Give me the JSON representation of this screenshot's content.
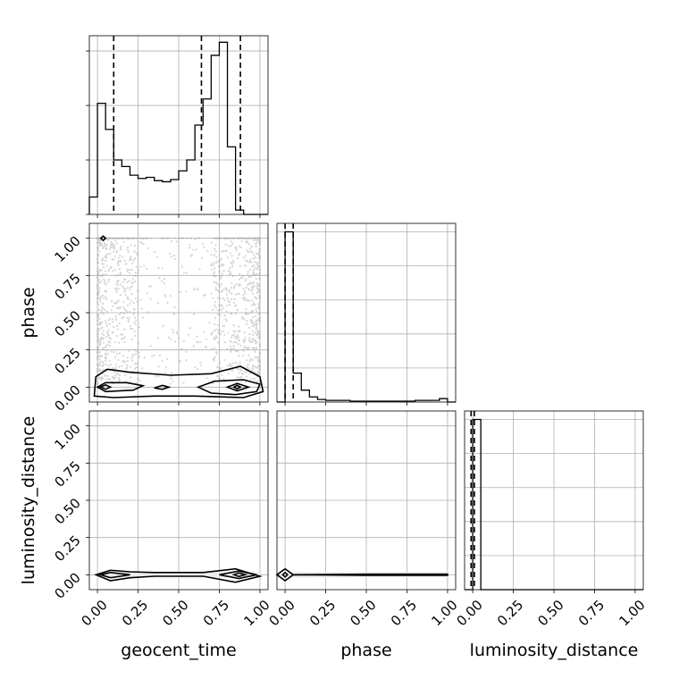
{
  "chart_data": {
    "type": "corner",
    "parameters": [
      "geocent_time",
      "phase",
      "luminosity_distance"
    ],
    "ticks": [
      "0.00",
      "0.25",
      "0.50",
      "0.75",
      "1.00"
    ],
    "tick_values": [
      0,
      0.25,
      0.5,
      0.75,
      1.0
    ],
    "xlim": [
      -0.05,
      1.05
    ],
    "grid": true,
    "histograms": {
      "geocent_time": {
        "bin_edges": [
          -0.05,
          0.0,
          0.05,
          0.1,
          0.15,
          0.2,
          0.25,
          0.3,
          0.35,
          0.4,
          0.45,
          0.5,
          0.55,
          0.6,
          0.65,
          0.7,
          0.75,
          0.8,
          0.85,
          0.9,
          0.95,
          1.0,
          1.05
        ],
        "heights": [
          0.08,
          0.51,
          0.39,
          0.25,
          0.22,
          0.18,
          0.165,
          0.17,
          0.155,
          0.15,
          0.16,
          0.2,
          0.25,
          0.41,
          0.53,
          0.73,
          0.79,
          0.31,
          0.02,
          0.0,
          0.0,
          0.0
        ],
        "ymax": 0.82,
        "quantiles": [
          0.1,
          0.64,
          0.88
        ]
      },
      "phase": {
        "bin_edges": [
          -0.05,
          0.0,
          0.05,
          0.1,
          0.15,
          0.2,
          0.25,
          0.3,
          0.35,
          0.4,
          0.45,
          0.5,
          0.55,
          0.6,
          0.65,
          0.7,
          0.75,
          0.8,
          0.85,
          0.9,
          0.95,
          1.0,
          1.05
        ],
        "heights": [
          0.0,
          1.0,
          0.17,
          0.07,
          0.03,
          0.015,
          0.01,
          0.01,
          0.01,
          0.005,
          0.005,
          0.005,
          0.005,
          0.005,
          0.005,
          0.005,
          0.005,
          0.01,
          0.01,
          0.01,
          0.02,
          0.0
        ],
        "ymax": 1.05,
        "quantiles": [
          0.0,
          0.05
        ]
      },
      "luminosity_distance": {
        "bin_edges": [
          -0.05,
          0.0,
          0.05,
          0.1,
          0.15,
          0.2,
          0.25,
          0.3,
          0.35,
          0.4,
          0.45,
          0.5,
          0.55,
          0.6,
          0.65,
          0.7,
          0.75,
          0.8,
          0.85,
          0.9,
          0.95,
          1.0,
          1.05
        ],
        "heights": [
          0.0,
          1.0,
          0.0,
          0.0,
          0.0,
          0.0,
          0.0,
          0.0,
          0.0,
          0.0,
          0.0,
          0.0,
          0.0,
          0.0,
          0.0,
          0.0,
          0.0,
          0.0,
          0.0,
          0.0,
          0.0,
          0.0
        ],
        "ymax": 1.05,
        "quantiles": [
          -0.01,
          0.01
        ]
      }
    },
    "scatter_panels": [
      {
        "x": "geocent_time",
        "y": "phase",
        "ylim": [
          -0.1,
          1.1
        ],
        "scatter_cloud": {
          "x_range": [
            0.0,
            1.0
          ],
          "y_range": [
            0.02,
            1.0
          ]
        },
        "contour_levels": [
          {
            "shade": "#ffffff",
            "points": [
              [
                -0.02,
                -0.06
              ],
              [
                0.1,
                -0.07
              ],
              [
                0.35,
                -0.06
              ],
              [
                0.6,
                -0.06
              ],
              [
                0.9,
                -0.07
              ],
              [
                1.02,
                -0.03
              ],
              [
                1.0,
                0.07
              ],
              [
                0.88,
                0.14
              ],
              [
                0.7,
                0.09
              ],
              [
                0.45,
                0.08
              ],
              [
                0.2,
                0.1
              ],
              [
                0.06,
                0.12
              ],
              [
                -0.01,
                0.07
              ]
            ]
          },
          {
            "shade": "#d9d9d9",
            "points": [
              [
                0.0,
                0.0
              ],
              [
                0.05,
                -0.03
              ],
              [
                0.22,
                -0.02
              ],
              [
                0.28,
                0.01
              ],
              [
                0.18,
                0.03
              ],
              [
                0.05,
                0.03
              ]
            ]
          },
          {
            "shade": "#d9d9d9",
            "points": [
              [
                0.62,
                0.0
              ],
              [
                0.7,
                -0.04
              ],
              [
                0.85,
                -0.05
              ],
              [
                0.98,
                -0.03
              ],
              [
                1.0,
                0.02
              ],
              [
                0.9,
                0.05
              ],
              [
                0.72,
                0.04
              ]
            ]
          },
          {
            "shade": "#d9d9d9",
            "points": [
              [
                0.35,
                -0.005
              ],
              [
                0.4,
                -0.015
              ],
              [
                0.44,
                0.0
              ],
              [
                0.4,
                0.012
              ]
            ]
          },
          {
            "shade": "#777777",
            "points": [
              [
                0.02,
                0.0
              ],
              [
                0.05,
                -0.015
              ],
              [
                0.08,
                0.0
              ],
              [
                0.05,
                0.015
              ]
            ]
          },
          {
            "shade": "#777777",
            "points": [
              [
                0.8,
                0.0
              ],
              [
                0.86,
                -0.025
              ],
              [
                0.93,
                0.0
              ],
              [
                0.86,
                0.025
              ]
            ]
          },
          {
            "shade": "#000000",
            "points": [
              [
                0.84,
                0.0
              ],
              [
                0.86,
                -0.012
              ],
              [
                0.88,
                0.0
              ],
              [
                0.86,
                0.012
              ]
            ]
          },
          {
            "shade": "#ffffff",
            "points": [
              [
                0.02,
                1.0
              ],
              [
                0.035,
                0.985
              ],
              [
                0.05,
                1.0
              ],
              [
                0.035,
                1.015
              ]
            ]
          }
        ]
      },
      {
        "x": "geocent_time",
        "y": "luminosity_distance",
        "ylim": [
          -0.1,
          1.1
        ],
        "contour_levels": [
          {
            "shade": "#ffffff",
            "points": [
              [
                -0.01,
                0.0
              ],
              [
                0.08,
                -0.04
              ],
              [
                0.2,
                -0.02
              ],
              [
                0.35,
                -0.01
              ],
              [
                0.65,
                -0.01
              ],
              [
                0.85,
                -0.05
              ],
              [
                1.0,
                -0.01
              ],
              [
                0.85,
                0.04
              ],
              [
                0.65,
                0.015
              ],
              [
                0.35,
                0.015
              ],
              [
                0.2,
                0.02
              ],
              [
                0.08,
                0.03
              ]
            ]
          },
          {
            "shade": "#b5b5b5",
            "points": [
              [
                0.02,
                0.0
              ],
              [
                0.08,
                -0.02
              ],
              [
                0.2,
                0.0
              ],
              [
                0.08,
                0.015
              ]
            ]
          },
          {
            "shade": "#b5b5b5",
            "points": [
              [
                0.75,
                0.0
              ],
              [
                0.87,
                -0.025
              ],
              [
                0.98,
                0.0
              ],
              [
                0.87,
                0.025
              ]
            ]
          },
          {
            "shade": "#000000",
            "points": [
              [
                0.84,
                0.0
              ],
              [
                0.87,
                -0.012
              ],
              [
                0.91,
                0.0
              ],
              [
                0.87,
                0.012
              ]
            ]
          }
        ]
      },
      {
        "x": "phase",
        "y": "luminosity_distance",
        "ylim": [
          -0.1,
          1.1
        ],
        "contour_levels": [
          {
            "shade": "#ffffff",
            "points": [
              [
                -0.05,
                0.0
              ],
              [
                0.0,
                -0.04
              ],
              [
                0.05,
                0.0
              ],
              [
                0.5,
                0.004
              ],
              [
                1.0,
                0.004
              ],
              [
                1.0,
                -0.004
              ],
              [
                0.5,
                -0.004
              ],
              [
                0.05,
                0.0
              ],
              [
                0.0,
                0.04
              ]
            ]
          },
          {
            "shade": "#000000",
            "points": [
              [
                -0.015,
                0.0
              ],
              [
                0.0,
                -0.015
              ],
              [
                0.015,
                0.0
              ],
              [
                0.0,
                0.015
              ]
            ]
          }
        ]
      }
    ]
  }
}
